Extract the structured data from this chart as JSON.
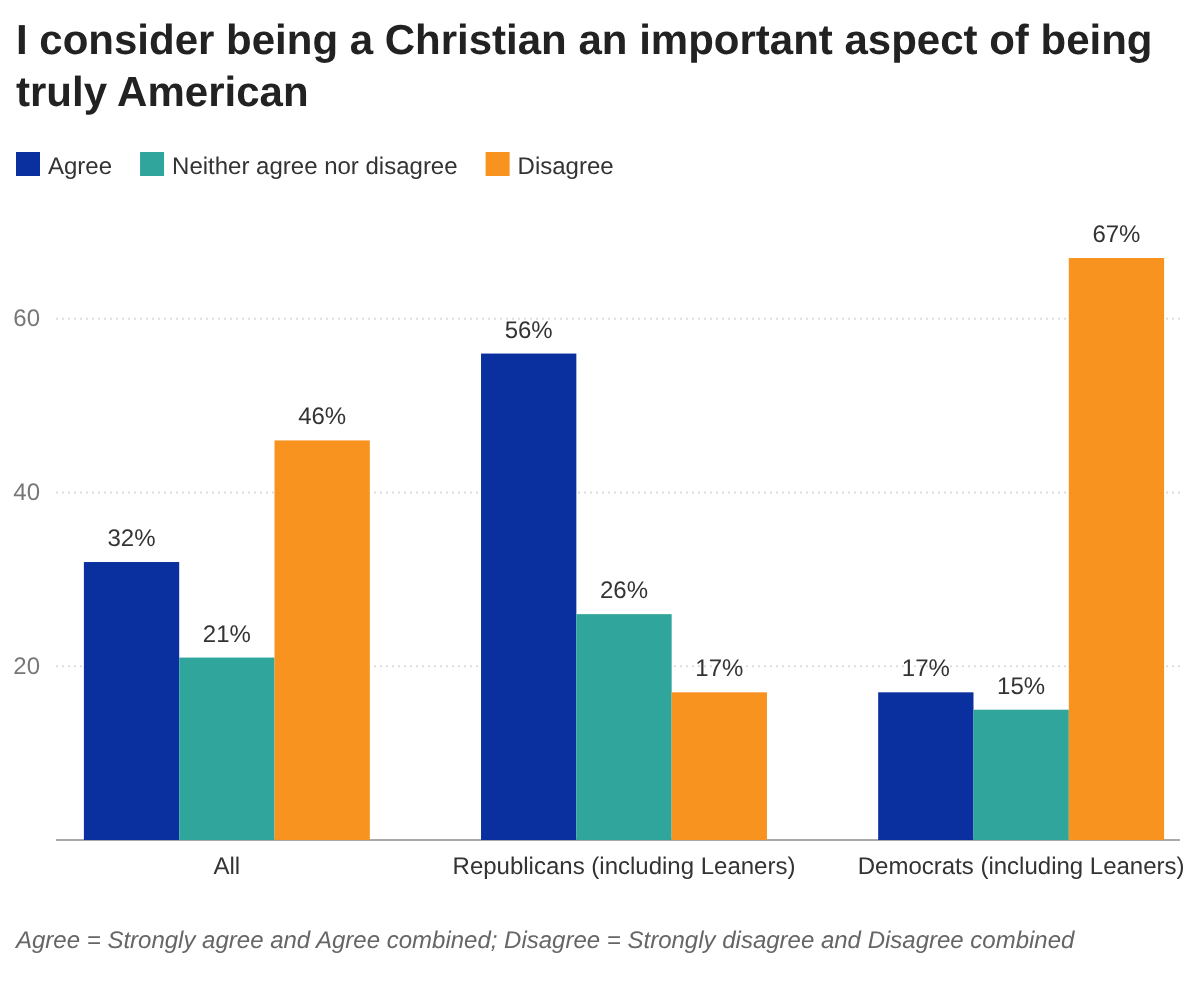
{
  "chart_data": {
    "type": "bar",
    "title": "I consider being a Christian an important aspect of being truly American",
    "categories": [
      "All",
      "Republicans (including Leaners)",
      "Democrats (including Leaners)"
    ],
    "series": [
      {
        "name": "Agree",
        "color": "#0a2f9e",
        "values": [
          32,
          56,
          17
        ]
      },
      {
        "name": "Neither agree nor disagree",
        "color": "#30a59b",
        "values": [
          21,
          26,
          15
        ]
      },
      {
        "name": "Disagree",
        "color": "#f7931e",
        "values": [
          46,
          17,
          67
        ]
      }
    ],
    "value_labels": [
      [
        "32%",
        "56%",
        "17%"
      ],
      [
        "21%",
        "26%",
        "15%"
      ],
      [
        "46%",
        "17%",
        "67%"
      ]
    ],
    "ylim": [
      0,
      67
    ],
    "yticks": [
      20,
      40,
      60
    ],
    "grid": "y",
    "legend": "top left",
    "annotations": [
      "Agree = Strongly agree and Agree combined; Disagree = Strongly disagree and Disagree combined"
    ]
  }
}
